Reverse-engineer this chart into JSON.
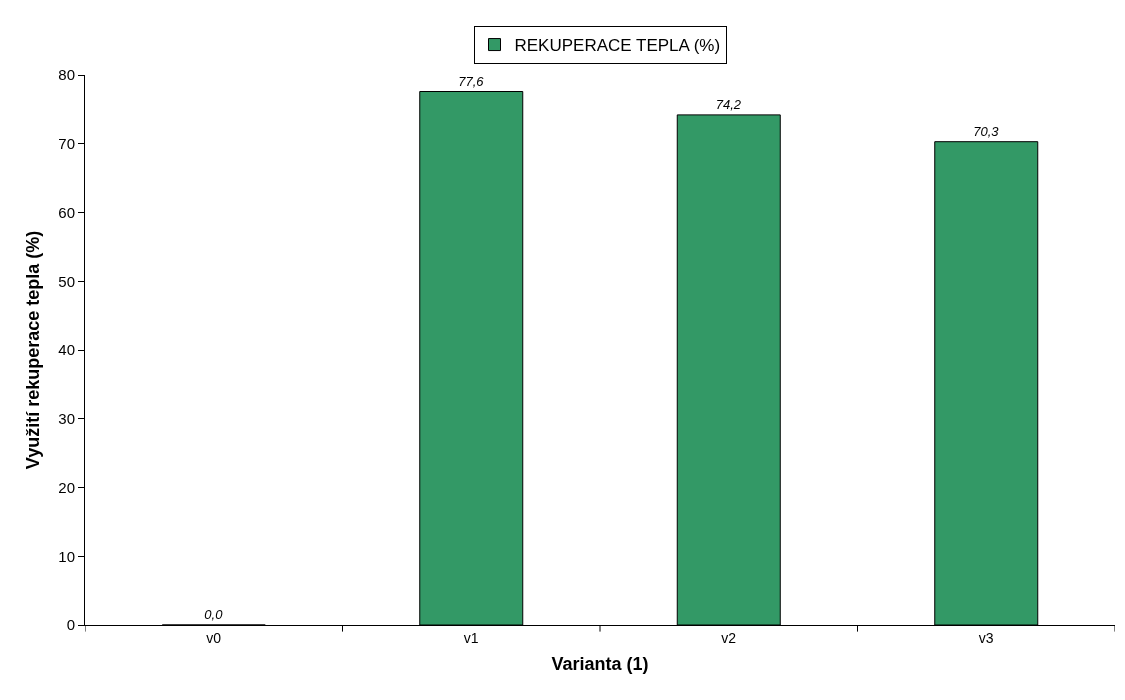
{
  "chart_data": {
    "type": "bar",
    "xlabel": "Varianta (1)",
    "ylabel": "Využití rekuperace tepla (%)",
    "categories": [
      "v0",
      "v1",
      "v2",
      "v3"
    ],
    "series": [
      {
        "name": "REKUPERACE TEPLA (%)",
        "color": "#339966",
        "values": [
          0.0,
          77.6,
          74.2,
          70.3
        ],
        "value_labels": [
          "0,0",
          "77,6",
          "74,2",
          "70,3"
        ]
      }
    ],
    "ylim": [
      0,
      80
    ],
    "yticks": [
      0,
      10,
      20,
      30,
      40,
      50,
      60,
      70,
      80
    ],
    "grid": false,
    "legend": "top"
  }
}
